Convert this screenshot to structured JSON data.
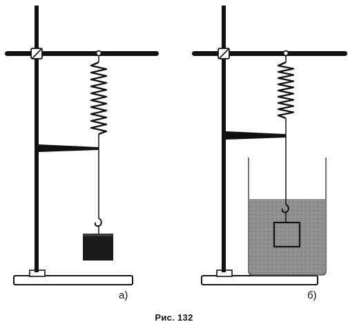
{
  "figure": {
    "caption": "Рис. 132",
    "panels": [
      {
        "label": "а)"
      },
      {
        "label": "б)"
      }
    ]
  },
  "colors": {
    "ink": "#111111",
    "water": "#8e8e8e",
    "vessel_outline": "#555555",
    "mass": "#1a1a1a"
  }
}
